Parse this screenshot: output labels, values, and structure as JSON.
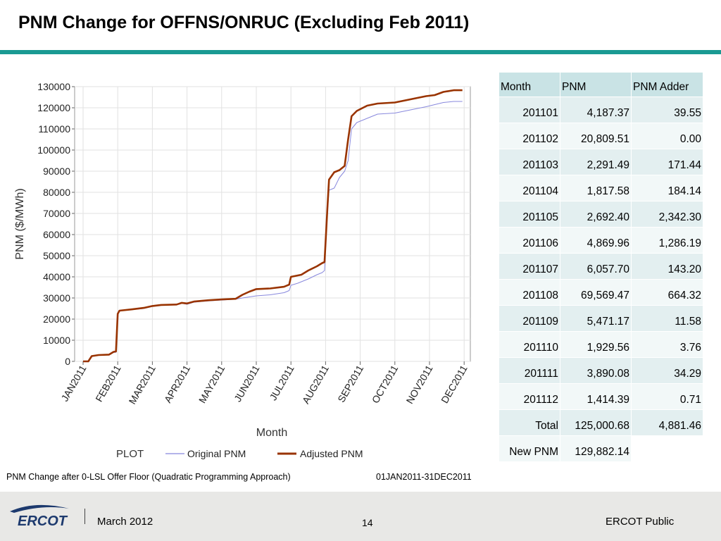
{
  "slide": {
    "title": "PNM Change for OFFNS/ONRUC (Excluding Feb 2011)",
    "caption_left": "PNM Change after 0-LSL Offer Floor (Quadratic Programming Approach)",
    "caption_right": "01JAN2011-31DEC2011",
    "accent_color": "#1a9a93"
  },
  "footer": {
    "logo_text": "ERCOT",
    "date": "March 2012",
    "page": "14",
    "classification": "ERCOT Public",
    "logo_color": "#1d3a6e"
  },
  "chart_data": {
    "type": "line",
    "xlabel": "Month",
    "ylabel": "PNM ($/MWh)",
    "ylim": [
      0,
      130000
    ],
    "yticks": [
      0,
      10000,
      20000,
      30000,
      40000,
      50000,
      60000,
      70000,
      80000,
      90000,
      100000,
      110000,
      120000,
      130000
    ],
    "xticks": [
      "JAN2011",
      "FEB2011",
      "MAR2011",
      "APR2011",
      "MAY2011",
      "JUN2011",
      "JUL2011",
      "AUG2011",
      "SEP2011",
      "OCT2011",
      "NOV2011",
      "DEC2011"
    ],
    "legend_title": "PLOT",
    "legend_position": "bottom",
    "grid": true,
    "series": [
      {
        "name": "Original PNM",
        "color": "#8888dd",
        "points": [
          [
            0.0,
            0
          ],
          [
            0.15,
            0
          ],
          [
            0.25,
            2500
          ],
          [
            0.45,
            3000
          ],
          [
            0.75,
            3200
          ],
          [
            0.88,
            4200
          ],
          [
            0.95,
            4300
          ],
          [
            1.0,
            22000
          ],
          [
            1.05,
            24000
          ],
          [
            1.4,
            24500
          ],
          [
            1.75,
            25000
          ],
          [
            2.0,
            26000
          ],
          [
            2.25,
            26500
          ],
          [
            2.7,
            26800
          ],
          [
            2.85,
            27500
          ],
          [
            3.0,
            27000
          ],
          [
            3.2,
            28000
          ],
          [
            3.6,
            28600
          ],
          [
            4.0,
            29000
          ],
          [
            4.4,
            29400
          ],
          [
            4.6,
            30000
          ],
          [
            5.0,
            31000
          ],
          [
            5.4,
            31500
          ],
          [
            5.8,
            32500
          ],
          [
            5.95,
            33500
          ],
          [
            6.0,
            36000
          ],
          [
            6.2,
            37000
          ],
          [
            6.5,
            39000
          ],
          [
            6.75,
            41000
          ],
          [
            6.9,
            42000
          ],
          [
            6.97,
            43000
          ],
          [
            7.05,
            70000
          ],
          [
            7.1,
            81000
          ],
          [
            7.25,
            82000
          ],
          [
            7.4,
            87000
          ],
          [
            7.55,
            90000
          ],
          [
            7.65,
            95000
          ],
          [
            7.75,
            110000
          ],
          [
            7.9,
            113000
          ],
          [
            8.2,
            115000
          ],
          [
            8.5,
            117000
          ],
          [
            9.0,
            117500
          ],
          [
            9.3,
            118500
          ],
          [
            9.6,
            119500
          ],
          [
            9.9,
            120500
          ],
          [
            10.15,
            121500
          ],
          [
            10.4,
            122500
          ],
          [
            10.7,
            123000
          ],
          [
            10.95,
            123000
          ]
        ]
      },
      {
        "name": "Adjusted PNM",
        "color": "#993300",
        "points": [
          [
            0.0,
            0
          ],
          [
            0.15,
            0
          ],
          [
            0.25,
            2500
          ],
          [
            0.45,
            3000
          ],
          [
            0.75,
            3200
          ],
          [
            0.88,
            4500
          ],
          [
            0.95,
            4700
          ],
          [
            1.0,
            22500
          ],
          [
            1.05,
            24000
          ],
          [
            1.4,
            24600
          ],
          [
            1.75,
            25300
          ],
          [
            2.0,
            26200
          ],
          [
            2.25,
            26700
          ],
          [
            2.7,
            26900
          ],
          [
            2.85,
            27700
          ],
          [
            3.0,
            27400
          ],
          [
            3.2,
            28300
          ],
          [
            3.6,
            28900
          ],
          [
            4.0,
            29300
          ],
          [
            4.4,
            29600
          ],
          [
            4.6,
            31500
          ],
          [
            4.8,
            33000
          ],
          [
            5.0,
            34200
          ],
          [
            5.4,
            34500
          ],
          [
            5.8,
            35300
          ],
          [
            5.95,
            36300
          ],
          [
            6.0,
            40000
          ],
          [
            6.3,
            41000
          ],
          [
            6.5,
            43000
          ],
          [
            6.75,
            45000
          ],
          [
            6.9,
            46500
          ],
          [
            6.97,
            47000
          ],
          [
            7.05,
            72000
          ],
          [
            7.1,
            86000
          ],
          [
            7.25,
            89500
          ],
          [
            7.4,
            90500
          ],
          [
            7.55,
            92500
          ],
          [
            7.65,
            105000
          ],
          [
            7.75,
            116000
          ],
          [
            7.9,
            118500
          ],
          [
            8.2,
            121000
          ],
          [
            8.5,
            122000
          ],
          [
            9.0,
            122500
          ],
          [
            9.3,
            123500
          ],
          [
            9.6,
            124500
          ],
          [
            9.9,
            125500
          ],
          [
            10.15,
            126000
          ],
          [
            10.4,
            127500
          ],
          [
            10.7,
            128300
          ],
          [
            10.95,
            128300
          ]
        ]
      }
    ]
  },
  "table": {
    "headers": [
      "Month",
      "PNM",
      "PNM Adder"
    ],
    "rows": [
      [
        "201101",
        "4,187.37",
        "39.55"
      ],
      [
        "201102",
        "20,809.51",
        "0.00"
      ],
      [
        "201103",
        "2,291.49",
        "171.44"
      ],
      [
        "201104",
        "1,817.58",
        "184.14"
      ],
      [
        "201105",
        "2,692.40",
        "2,342.30"
      ],
      [
        "201106",
        "4,869.96",
        "1,286.19"
      ],
      [
        "201107",
        "6,057.70",
        "143.20"
      ],
      [
        "201108",
        "69,569.47",
        "664.32"
      ],
      [
        "201109",
        "5,471.17",
        "11.58"
      ],
      [
        "201110",
        "1,929.56",
        "3.76"
      ],
      [
        "201111",
        "3,890.08",
        "34.29"
      ],
      [
        "201112",
        "1,414.39",
        "0.71"
      ]
    ],
    "total": [
      "Total",
      "125,000.68",
      "4,881.46"
    ],
    "new_pnm": [
      "New PNM",
      "129,882.14",
      ""
    ]
  }
}
